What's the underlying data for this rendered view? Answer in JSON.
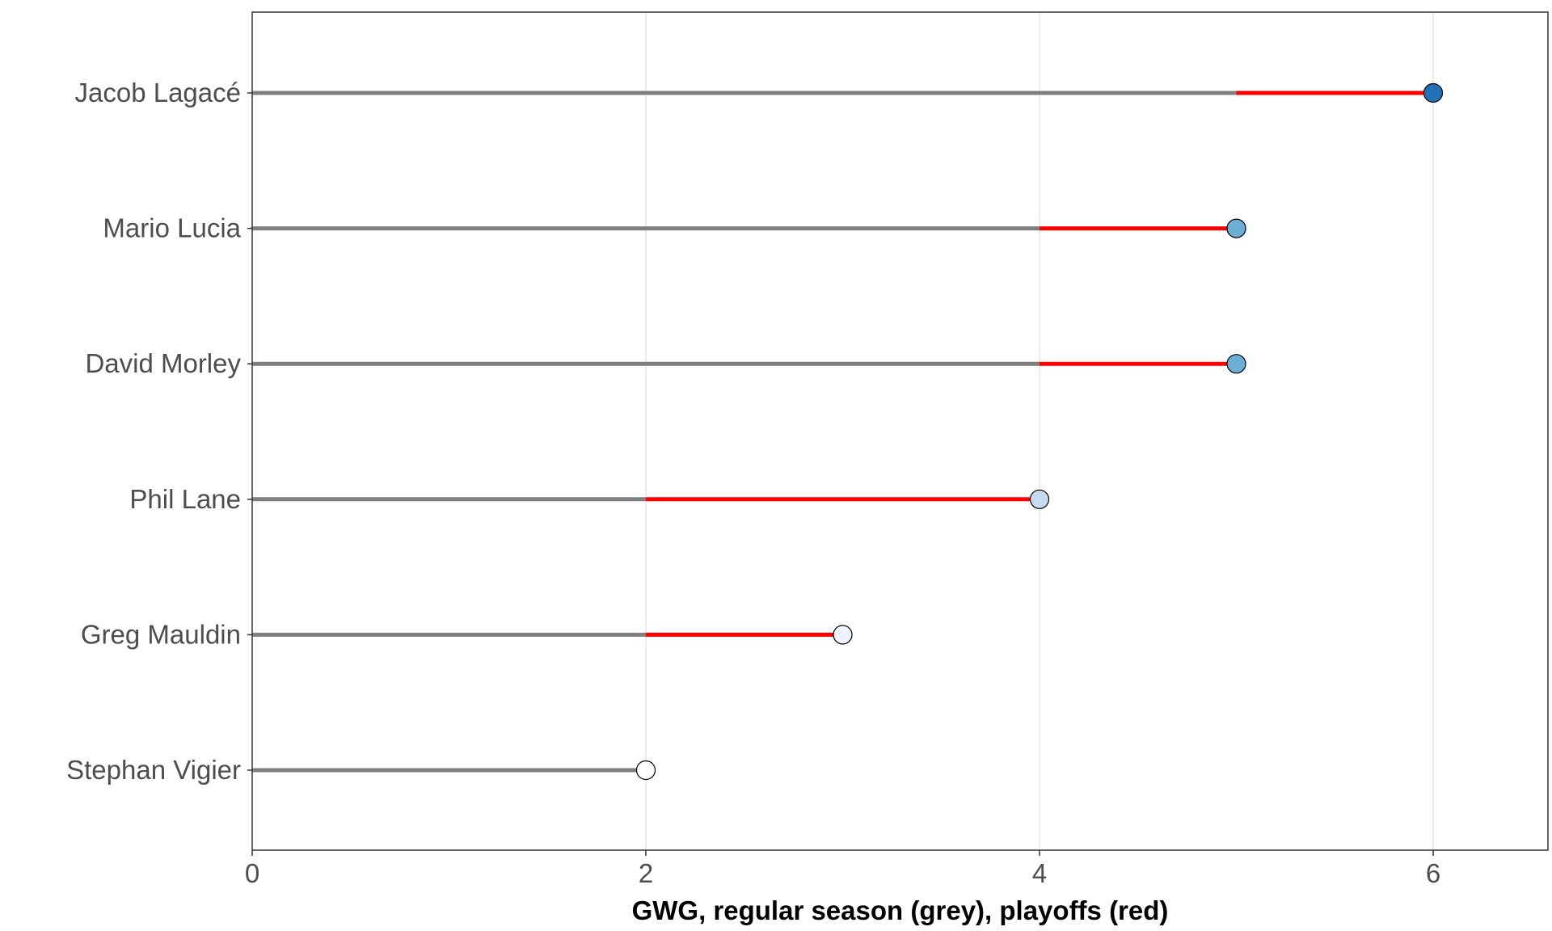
{
  "chart_data": {
    "type": "lollipop",
    "categories": [
      "Jacob Lagacé",
      "Mario Lucia",
      "David Morley",
      "Phil Lane",
      "Greg Mauldin",
      "Stephan Vigier"
    ],
    "series": [
      {
        "values": [
          5,
          4,
          4,
          2,
          2,
          2
        ],
        "color": "#7f7f7f"
      },
      {
        "values": [
          6,
          5,
          5,
          4,
          3,
          2
        ],
        "color": "#ff0000"
      }
    ],
    "point_colors": [
      "#2171b5",
      "#6baed6",
      "#6baed6",
      "#c6dbef",
      "#eff3ff",
      "#ffffff"
    ],
    "xlabel": "GWG, regular season (grey), playoffs (red)",
    "ylabel": "",
    "xlim": [
      0,
      6.6
    ],
    "xticks": [
      0,
      2,
      4,
      6
    ],
    "xtick_labels": [
      "0",
      "2",
      "4",
      "6"
    ],
    "grid": "vertical-major",
    "legend": "none"
  }
}
